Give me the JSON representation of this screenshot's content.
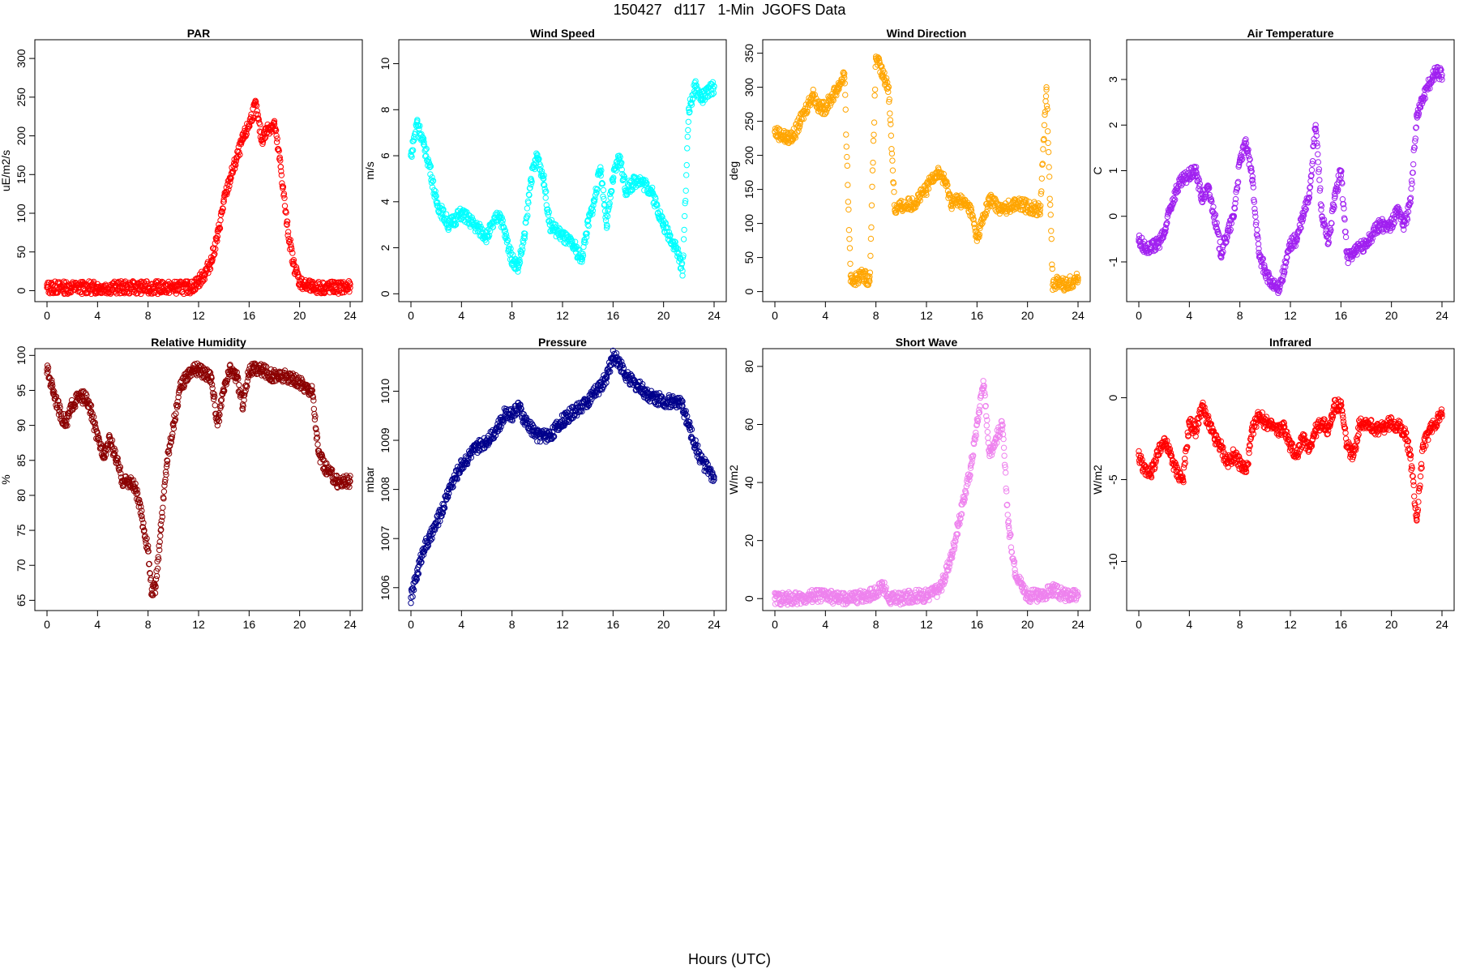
{
  "figure": {
    "title": "150427   d117   1-Min  JGOFS Data",
    "xlabel": "Hours (UTC)"
  },
  "chart_data": [
    {
      "type": "scatter",
      "title": "PAR",
      "ylabel": "uE/m2/s",
      "color": "#ff0000",
      "xlim": [
        0,
        24
      ],
      "xticks": [
        0,
        4,
        8,
        12,
        16,
        20,
        24
      ],
      "ylim": [
        -10,
        320
      ],
      "yticks": [
        0,
        50,
        100,
        150,
        200,
        250,
        300
      ],
      "x": [
        0,
        2,
        4,
        6,
        8,
        10,
        11,
        11.5,
        12,
        12.5,
        13,
        13.5,
        14,
        14.5,
        15,
        15.5,
        16,
        16.5,
        17,
        17.5,
        18,
        18.5,
        19,
        19.5,
        20,
        20.5,
        21,
        22,
        24
      ],
      "y": [
        4,
        4,
        4,
        4,
        4,
        4,
        4,
        5,
        12,
        22,
        38,
        70,
        115,
        145,
        170,
        195,
        215,
        240,
        195,
        210,
        215,
        160,
        85,
        35,
        12,
        6,
        4,
        4,
        4
      ]
    },
    {
      "type": "scatter",
      "title": "Wind Speed",
      "ylabel": "m/s",
      "color": "#00ffff",
      "xlim": [
        0,
        24
      ],
      "xticks": [
        0,
        4,
        8,
        12,
        16,
        20,
        24
      ],
      "ylim": [
        -0.2,
        10.9
      ],
      "yticks": [
        0,
        2,
        4,
        6,
        8,
        10
      ],
      "x": [
        0,
        0.5,
        1,
        1.5,
        2,
        2.5,
        3,
        4,
        5,
        6,
        7,
        8,
        8.5,
        9,
        9.5,
        10,
        10.5,
        11,
        12,
        13,
        13.5,
        14,
        14.5,
        15,
        15.5,
        16,
        16.5,
        17,
        18,
        19,
        20,
        20.5,
        21,
        21.5,
        22,
        22.5,
        23,
        24
      ],
      "y": [
        6,
        7.5,
        6.5,
        5.5,
        4,
        3.5,
        3,
        3.5,
        3,
        2.5,
        3.5,
        1.5,
        1.2,
        2.5,
        5,
        6,
        5,
        3,
        2.5,
        2,
        1.5,
        3,
        4,
        5.5,
        3,
        5,
        6,
        4.5,
        5,
        4.5,
        3,
        2.5,
        2,
        1,
        8,
        9,
        8.5,
        9
      ]
    },
    {
      "type": "scatter",
      "title": "Wind Direction",
      "ylabel": "deg",
      "color": "#ffa500",
      "xlim": [
        0,
        24
      ],
      "xticks": [
        0,
        4,
        8,
        12,
        16,
        20,
        24
      ],
      "ylim": [
        -10,
        365
      ],
      "yticks": [
        0,
        50,
        100,
        150,
        200,
        250,
        300,
        350
      ],
      "x": [
        0,
        1,
        1.5,
        2,
        3,
        3.5,
        4,
        5,
        5.5,
        6,
        6.5,
        7,
        7.5,
        8,
        8.5,
        9,
        9.5,
        10,
        11,
        12,
        12.5,
        13,
        13.5,
        14,
        14.5,
        15,
        15.5,
        16,
        17,
        18,
        19,
        20,
        21,
        21.5,
        22,
        22.5,
        23,
        24
      ],
      "y": [
        235,
        225,
        230,
        250,
        290,
        270,
        270,
        300,
        320,
        15,
        20,
        25,
        15,
        345,
        320,
        300,
        120,
        125,
        130,
        150,
        170,
        175,
        160,
        130,
        135,
        130,
        120,
        80,
        135,
        120,
        130,
        125,
        120,
        300,
        10,
        15,
        10,
        20
      ]
    },
    {
      "type": "scatter",
      "title": "Air Temperature",
      "ylabel": "C",
      "color": "#a020f0",
      "xlim": [
        0,
        24
      ],
      "xticks": [
        0,
        4,
        8,
        12,
        16,
        20,
        24
      ],
      "ylim": [
        -1.8,
        3.8
      ],
      "yticks": [
        -1,
        0,
        1,
        2,
        3
      ],
      "x": [
        0,
        0.5,
        1,
        1.5,
        2,
        2.5,
        3,
        3.5,
        4,
        4.5,
        5,
        5.5,
        6,
        6.5,
        7,
        7.5,
        8,
        8.5,
        9,
        9.5,
        10,
        10.5,
        11,
        11.5,
        12,
        12.5,
        13,
        13.5,
        14,
        14.5,
        15,
        15.5,
        16,
        16.5,
        17,
        18,
        19,
        20,
        20.5,
        21,
        21.5,
        22,
        22.5,
        23,
        23.5,
        24
      ],
      "y": [
        -0.5,
        -0.7,
        -0.7,
        -0.6,
        -0.4,
        0.2,
        0.6,
        0.8,
        0.9,
        1.0,
        0.4,
        0.6,
        0.0,
        -0.8,
        -0.4,
        0.0,
        1.2,
        1.6,
        0.8,
        -0.8,
        -1.2,
        -1.5,
        -1.6,
        -1.2,
        -0.6,
        -0.5,
        0.0,
        0.5,
        2.0,
        0.0,
        -0.6,
        0.4,
        1.0,
        -0.9,
        -0.8,
        -0.6,
        -0.2,
        -0.2,
        0.2,
        -0.2,
        0.3,
        2.2,
        2.6,
        2.9,
        3.2,
        3.1
      ]
    },
    {
      "type": "scatter",
      "title": "Relative Humidity",
      "ylabel": "%",
      "color": "#8b0000",
      "xlim": [
        0,
        24
      ],
      "xticks": [
        0,
        4,
        8,
        12,
        16,
        20,
        24
      ],
      "ylim": [
        64,
        100.5
      ],
      "yticks": [
        65,
        70,
        75,
        80,
        85,
        90,
        95,
        100
      ],
      "x": [
        0,
        0.5,
        1,
        1.5,
        2,
        2.5,
        3,
        3.5,
        4,
        4.5,
        5,
        5.5,
        6,
        6.5,
        7,
        7.5,
        8,
        8.3,
        8.6,
        9,
        9.5,
        10,
        10.5,
        11,
        11.5,
        12,
        13,
        13.5,
        14,
        14.5,
        15,
        15.5,
        16,
        17,
        18,
        19,
        20,
        21,
        21.5,
        22,
        23,
        24
      ],
      "y": [
        98,
        95,
        92,
        90,
        93,
        94,
        94,
        92,
        88,
        86,
        88,
        85,
        82,
        82,
        81,
        77,
        72,
        66,
        67,
        75,
        85,
        90,
        95,
        97,
        98,
        98,
        97,
        90,
        95,
        98,
        97,
        93,
        98,
        98,
        97,
        97,
        96,
        95,
        86,
        84,
        82,
        82
      ]
    },
    {
      "type": "scatter",
      "title": "Pressure",
      "ylabel": "mbar",
      "color": "#00008b",
      "xlim": [
        0,
        24
      ],
      "xticks": [
        0,
        4,
        8,
        12,
        16,
        20,
        24
      ],
      "ylim": [
        1005.6,
        1010.8
      ],
      "yticks": [
        1006,
        1007,
        1008,
        1009,
        1010
      ],
      "x": [
        0,
        0.5,
        1,
        1.5,
        2,
        2.5,
        3,
        4,
        5,
        6,
        7,
        7.5,
        8,
        8.5,
        9,
        10,
        11,
        12,
        13,
        14,
        15,
        15.5,
        16,
        16.5,
        17,
        18,
        19,
        20,
        21,
        21.5,
        22,
        22.5,
        23,
        24
      ],
      "y": [
        1005.8,
        1006.3,
        1006.8,
        1007.0,
        1007.3,
        1007.6,
        1008.0,
        1008.5,
        1008.8,
        1009.0,
        1009.3,
        1009.6,
        1009.5,
        1009.7,
        1009.4,
        1009.1,
        1009.1,
        1009.4,
        1009.6,
        1009.8,
        1010.1,
        1010.3,
        1010.7,
        1010.6,
        1010.3,
        1010.1,
        1009.9,
        1009.8,
        1009.8,
        1009.7,
        1009.3,
        1008.9,
        1008.6,
        1008.2
      ]
    },
    {
      "type": "scatter",
      "title": "Short Wave",
      "ylabel": "W/m2",
      "color": "#ee82ee",
      "xlim": [
        0,
        24
      ],
      "xticks": [
        0,
        4,
        8,
        12,
        16,
        20,
        24
      ],
      "ylim": [
        -3,
        85
      ],
      "yticks": [
        0,
        20,
        40,
        60,
        80
      ],
      "x": [
        0,
        2,
        3,
        4,
        5,
        6,
        7,
        8,
        8.5,
        9,
        10,
        11,
        12,
        13,
        13.5,
        14,
        14.5,
        15,
        15.5,
        16,
        16.5,
        17,
        17.5,
        18,
        18.5,
        19,
        19.5,
        20,
        21,
        22,
        23,
        24
      ],
      "y": [
        0,
        0,
        1,
        1,
        0,
        0,
        1,
        2,
        5,
        0,
        0,
        1,
        1,
        3,
        8,
        15,
        25,
        35,
        45,
        60,
        75,
        50,
        55,
        60,
        25,
        10,
        5,
        1,
        1,
        3,
        1,
        1
      ]
    },
    {
      "type": "scatter",
      "title": "Infrared",
      "ylabel": "W/m2",
      "color": "#ff0000",
      "xlim": [
        0,
        24
      ],
      "xticks": [
        0,
        4,
        8,
        12,
        16,
        20,
        24
      ],
      "ylim": [
        -12.8,
        2.8
      ],
      "yticks": [
        -10,
        -5,
        0
      ],
      "x": [
        0,
        0.5,
        1,
        1.5,
        2,
        2.5,
        3,
        3.5,
        4,
        4.5,
        5,
        5.5,
        6,
        6.5,
        7,
        7.5,
        8,
        8.5,
        9,
        9.5,
        10,
        11,
        11.5,
        12,
        12.5,
        13,
        13.5,
        14,
        14.5,
        15,
        15.5,
        16,
        16.5,
        17,
        17.5,
        18,
        19,
        20,
        21,
        21.5,
        22,
        22.5,
        23,
        24
      ],
      "y": [
        -3.5,
        -4.5,
        -4.5,
        -3.5,
        -2.5,
        -3.5,
        -4.5,
        -5,
        -1.5,
        -2,
        -0.5,
        -1.5,
        -2.5,
        -3,
        -4,
        -3.5,
        -4,
        -4.5,
        -2,
        -1,
        -1.5,
        -2,
        -1.8,
        -3,
        -3.5,
        -2.5,
        -3,
        -2,
        -1.5,
        -2,
        -0.5,
        -0.5,
        -3,
        -3.5,
        -1.5,
        -1.5,
        -2,
        -1.5,
        -2,
        -3.5,
        -7.5,
        -3,
        -2,
        -1
      ]
    }
  ]
}
